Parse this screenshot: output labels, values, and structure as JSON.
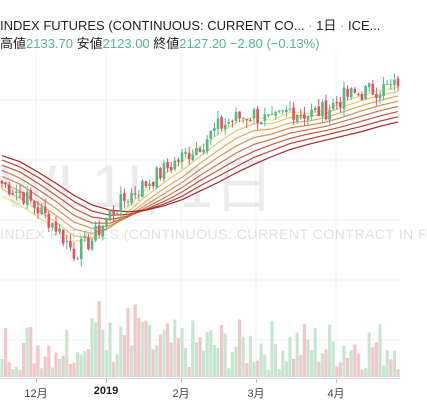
{
  "header": {
    "title": "INDEX FUTURES (CONTINUOUS: CURRENT CO...",
    "interval": "1日",
    "exchange": "ICE...",
    "high_label": "高値",
    "high": "2133.70",
    "low_label": "安値",
    "low": "2123.00",
    "close_label": "終値",
    "close": "2127.20",
    "change": "−2.80",
    "change_pct": "(−0.13%)"
  },
  "watermark": {
    "symbol": "WL1!, 1日",
    "description": "INDEX FUTURES (CONTINUOUS: CURRENT CONTRACT IN F"
  },
  "x_axis": {
    "labels": [
      "12月",
      "2019",
      "2月",
      "3月",
      "4月"
    ]
  },
  "colors": {
    "up": "#53b987",
    "down": "#eb4d5c",
    "ribbon_fast": "#f2e27a",
    "ribbon_slow": "#b22222",
    "volume_up": "#c8e6cf",
    "volume_down": "#f3c6c9"
  },
  "chart_data": {
    "type": "candlestick",
    "title": "INDEX FUTURES (CONTINUOUS: CURRENT CONTRACT IN F",
    "timeframe": "1日",
    "x": [
      "2018-11-19",
      "2018-11-26",
      "2018-12-03",
      "2018-12-10",
      "2018-12-17",
      "2018-12-24",
      "2018-12-31",
      "2019-01-07",
      "2019-01-14",
      "2019-01-21",
      "2019-01-28",
      "2019-02-04",
      "2019-02-11",
      "2019-02-18",
      "2019-02-25",
      "2019-03-04",
      "2019-03-11",
      "2019-03-18",
      "2019-03-25",
      "2019-04-01",
      "2019-04-08",
      "2019-04-15",
      "2019-04-22"
    ],
    "close": [
      2015,
      2005,
      1985,
      1965,
      1935,
      1950,
      1980,
      2000,
      2015,
      2030,
      2045,
      2060,
      2080,
      2090,
      2095,
      2085,
      2100,
      2095,
      2100,
      2115,
      2120,
      2125,
      2127.2
    ],
    "ribbon": {
      "type": "line",
      "series_count": 8,
      "series": [
        {
          "values": [
            2000,
            1990,
            1976,
            1962,
            1948,
            1950,
            1966,
            1988,
            2008,
            2025,
            2040,
            2056,
            2072,
            2085,
            2092,
            2088,
            2097,
            2096,
            2100,
            2110,
            2117,
            2123,
            2126
          ]
        },
        {
          "values": [
            2008,
            1998,
            1984,
            1970,
            1954,
            1952,
            1964,
            1982,
            2000,
            2016,
            2030,
            2046,
            2062,
            2076,
            2084,
            2084,
            2091,
            2092,
            2096,
            2104,
            2111,
            2117,
            2121
          ]
        },
        {
          "values": [
            2016,
            2006,
            1992,
            1978,
            1962,
            1957,
            1964,
            1978,
            1994,
            2009,
            2022,
            2038,
            2053,
            2067,
            2076,
            2078,
            2085,
            2087,
            2091,
            2098,
            2105,
            2111,
            2116
          ]
        },
        {
          "values": [
            2023,
            2014,
            2000,
            1986,
            1970,
            1963,
            1966,
            1976,
            1990,
            2003,
            2016,
            2031,
            2045,
            2058,
            2068,
            2072,
            2079,
            2082,
            2086,
            2092,
            2099,
            2105,
            2110
          ]
        },
        {
          "values": [
            2030,
            2021,
            2008,
            1994,
            1978,
            1969,
            1969,
            1976,
            1987,
            1998,
            2010,
            2024,
            2037,
            2050,
            2060,
            2066,
            2073,
            2077,
            2081,
            2087,
            2093,
            2099,
            2104
          ]
        },
        {
          "values": [
            2036,
            2028,
            2015,
            2001,
            1986,
            1976,
            1973,
            1977,
            1985,
            1994,
            2005,
            2018,
            2030,
            2042,
            2052,
            2060,
            2067,
            2072,
            2076,
            2081,
            2087,
            2093,
            2098
          ]
        },
        {
          "values": [
            2042,
            2034,
            2022,
            2008,
            1994,
            1983,
            1978,
            1979,
            1984,
            1991,
            2000,
            2012,
            2023,
            2034,
            2045,
            2053,
            2061,
            2066,
            2071,
            2076,
            2081,
            2087,
            2092
          ]
        },
        {
          "values": [
            2047,
            2040,
            2028,
            2015,
            2001,
            1990,
            1984,
            1982,
            1984,
            1989,
            1996,
            2006,
            2016,
            2027,
            2037,
            2046,
            2054,
            2060,
            2065,
            2070,
            2075,
            2081,
            2086
          ]
        }
      ]
    }
  }
}
